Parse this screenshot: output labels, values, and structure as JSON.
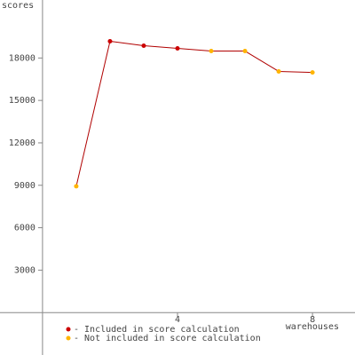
{
  "chart_data": {
    "type": "line",
    "y_label": "scores",
    "x_label": "warehouses",
    "x": [
      1,
      2,
      3,
      4,
      5,
      6,
      7,
      8
    ],
    "line_color": "#b00000",
    "series": [
      {
        "name": "- Included in score calculation",
        "color": "#cc0000",
        "values": [
          null,
          19180,
          18870,
          18680,
          null,
          null,
          null,
          null
        ]
      },
      {
        "name": "- Not included in score calculation",
        "color": "#ffb400",
        "values": [
          8930,
          null,
          null,
          null,
          18490,
          18490,
          17050,
          16980
        ]
      }
    ],
    "xlim": [
      -1.26,
      9.26
    ],
    "ylim": [
      -3000,
      22100
    ],
    "xticks": [
      4,
      8
    ],
    "yticks": [
      3000,
      6000,
      9000,
      12000,
      15000,
      18000
    ]
  }
}
